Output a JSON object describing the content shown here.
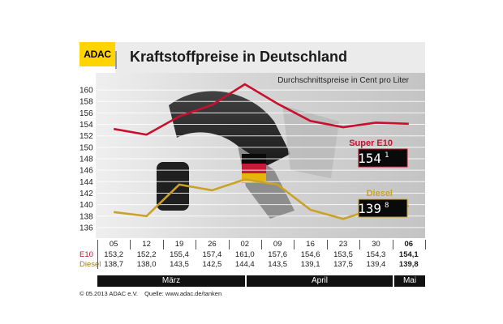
{
  "logo": "ADAC",
  "title": "Kraftstoffpreise in Deutschland",
  "colors": {
    "e10": "#c8102e",
    "diesel": "#c9a227",
    "logo": "#ffd400"
  },
  "chart_data": {
    "type": "line",
    "title": "Kraftstoffpreise in Deutschland",
    "subtitle": "Durchschnittspreise in Cent pro Liter",
    "ylim": [
      135,
      161
    ],
    "y_ticks": [
      "136",
      "138",
      "140",
      "142",
      "144",
      "146",
      "148",
      "150",
      "152",
      "154",
      "156",
      "158",
      "160"
    ],
    "categories": [
      "05",
      "12",
      "19",
      "26",
      "02",
      "09",
      "16",
      "23",
      "30",
      "06"
    ],
    "series": [
      {
        "name": "Super E10",
        "values": [
          153.2,
          152.2,
          155.4,
          157.4,
          161.0,
          157.6,
          154.6,
          153.5,
          154.3,
          154.1
        ]
      },
      {
        "name": "Diesel",
        "values": [
          138.7,
          138.0,
          143.5,
          142.5,
          144.4,
          143.5,
          139.1,
          137.5,
          139.4,
          139.8
        ]
      }
    ],
    "grid": true,
    "legend_position": "right"
  },
  "legend": {
    "e10_label": "Super E10",
    "e10_display_main": "154",
    "e10_display_sup": "1",
    "diesel_label": "Diesel",
    "diesel_display_main": "139",
    "diesel_display_sup": "8"
  },
  "table": {
    "row_labels": {
      "e10": "E10",
      "diesel": "Diesel"
    },
    "dates": [
      "05",
      "12",
      "19",
      "26",
      "02",
      "09",
      "16",
      "23",
      "30",
      "06"
    ],
    "e10": [
      "153,2",
      "152,2",
      "155,4",
      "157,4",
      "161,0",
      "157,6",
      "154,6",
      "153,5",
      "154,3",
      "154,1"
    ],
    "diesel": [
      "138,7",
      "138,0",
      "143,5",
      "142,5",
      "144,4",
      "143,5",
      "139,1",
      "137,5",
      "139,4",
      "139,8"
    ]
  },
  "months": [
    "März",
    "April",
    "Mai"
  ],
  "footer": {
    "copyright": "© 05.2013  ADAC e.V.",
    "source": "Quelle: www.adac.de/tanken"
  }
}
